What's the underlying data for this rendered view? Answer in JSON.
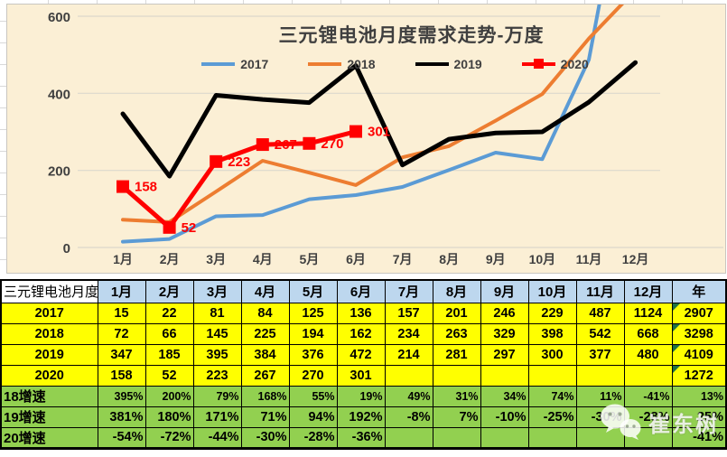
{
  "chart_data": {
    "type": "line",
    "title": "三元锂电池月度需求走势-万度",
    "categories": [
      "1月",
      "2月",
      "3月",
      "4月",
      "5月",
      "6月",
      "7月",
      "8月",
      "9月",
      "10月",
      "11月",
      "12月"
    ],
    "series": [
      {
        "name": "2017",
        "color": "#5B9BD5",
        "width": 4,
        "values": [
          15,
          22,
          81,
          84,
          125,
          136,
          157,
          201,
          246,
          229,
          487,
          1124
        ]
      },
      {
        "name": "2018",
        "color": "#ED7D31",
        "width": 4,
        "values": [
          72,
          66,
          145,
          225,
          194,
          162,
          234,
          263,
          329,
          398,
          542,
          668
        ]
      },
      {
        "name": "2019",
        "color": "#000000",
        "width": 5,
        "values": [
          347,
          185,
          395,
          384,
          376,
          472,
          214,
          281,
          297,
          300,
          377,
          480
        ]
      },
      {
        "name": "2020",
        "color": "#FF0000",
        "width": 5,
        "marker": "square",
        "values": [
          158,
          52,
          223,
          267,
          270,
          301
        ],
        "labels": [
          "158",
          "52",
          "223",
          "267",
          "270",
          "301"
        ]
      }
    ],
    "ylim": [
      0,
      600
    ],
    "yticks": [
      0,
      200,
      400,
      600
    ],
    "grid": true,
    "legend_position": "top",
    "plot_bg": "#FBEFD5"
  },
  "table": {
    "corner_label": "三元锂电池月度",
    "col_headers": [
      "1月",
      "2月",
      "3月",
      "4月",
      "5月",
      "6月",
      "7月",
      "8月",
      "9月",
      "10月",
      "11月",
      "12月",
      "年"
    ],
    "rows": [
      {
        "label": "2017",
        "type": "year",
        "values": [
          "15",
          "22",
          "81",
          "84",
          "125",
          "136",
          "157",
          "201",
          "246",
          "229",
          "487",
          "1124"
        ],
        "year": "2907",
        "corner": true
      },
      {
        "label": "2018",
        "type": "year",
        "values": [
          "72",
          "66",
          "145",
          "225",
          "194",
          "162",
          "234",
          "263",
          "329",
          "398",
          "542",
          "668"
        ],
        "year": "3298",
        "corner": true
      },
      {
        "label": "2019",
        "type": "year",
        "values": [
          "347",
          "185",
          "395",
          "384",
          "376",
          "472",
          "214",
          "281",
          "297",
          "300",
          "377",
          "480"
        ],
        "year": "4109",
        "corner": true
      },
      {
        "label": "2020",
        "type": "year",
        "values": [
          "158",
          "52",
          "223",
          "267",
          "270",
          "301",
          "",
          "",
          "",
          "",
          "",
          ""
        ],
        "year": "1272",
        "corner": true
      },
      {
        "label": "18增速",
        "type": "growth",
        "small": true,
        "values": [
          "395%",
          "200%",
          "79%",
          "168%",
          "55%",
          "19%",
          "49%",
          "31%",
          "34%",
          "74%",
          "11%",
          "-41%"
        ],
        "year": "13%"
      },
      {
        "label": "19增速",
        "type": "growth",
        "values": [
          "381%",
          "180%",
          "171%",
          "71%",
          "94%",
          "192%",
          "-8%",
          "7%",
          "-10%",
          "-25%",
          "-30%",
          "-28%"
        ],
        "year": "25%"
      },
      {
        "label": "20增速",
        "type": "growth",
        "values": [
          "-54%",
          "-72%",
          "-44%",
          "-30%",
          "-28%",
          "-36%",
          "",
          "",
          "",
          "",
          "",
          ""
        ],
        "year": "-41%"
      }
    ]
  },
  "watermark": {
    "text": "崔东树"
  },
  "colors": {
    "chart_bg": "#FBEFD5",
    "gridline": "#DCD8CC",
    "header_blue": "#BDD7EE",
    "year_yellow": "#FFFF00",
    "growth_green": "#92D050",
    "corner_triangle_green": "#1E7145",
    "axis_text": "#404040"
  }
}
